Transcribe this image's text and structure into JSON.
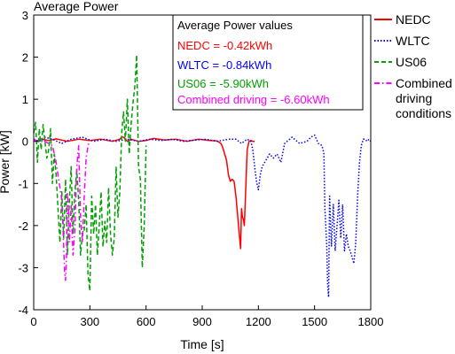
{
  "chart_data": {
    "type": "line",
    "title": "Average Power",
    "xlabel": "Time [s]",
    "ylabel": "Power [kW]",
    "xlim": [
      0,
      1800
    ],
    "ylim": [
      -4,
      3
    ],
    "xticks": [
      0,
      300,
      600,
      900,
      1200,
      1500,
      1800
    ],
    "yticks": [
      -4,
      -3,
      -2,
      -1,
      0,
      1,
      2,
      3
    ],
    "grid": false,
    "legend_position": "outside-right",
    "annotation_box": {
      "title": "Average Power values",
      "lines": [
        {
          "text": "NEDC = -0.42kWh",
          "color": "#ff0000"
        },
        {
          "text": "WLTC = -0.84kWh",
          "color": "#0000ff"
        },
        {
          "text": "US06 = -5.90kWh",
          "color": "#00a000"
        },
        {
          "text": "Combined driving = -6.60kWh",
          "color": "#ff00ff"
        }
      ]
    },
    "series": [
      {
        "name": "NEDC",
        "color": "#ff0000",
        "dash": "solid",
        "x": [
          0,
          20,
          40,
          80,
          120,
          180,
          240,
          300,
          360,
          420,
          460,
          470,
          480,
          490,
          500,
          520,
          560,
          600,
          640,
          700,
          760,
          820,
          880,
          940,
          980,
          1000,
          1010,
          1020,
          1030,
          1040,
          1050,
          1060,
          1070,
          1080,
          1090,
          1100,
          1105,
          1110,
          1115,
          1120,
          1125,
          1130,
          1140,
          1150,
          1160,
          1170,
          1180
        ],
        "y": [
          0.05,
          0.0,
          0.05,
          0.02,
          0.06,
          0.0,
          0.05,
          0.02,
          0.05,
          0.0,
          0.05,
          0.1,
          0.1,
          0.05,
          0.0,
          0.05,
          0.0,
          0.02,
          0.07,
          0.03,
          0.05,
          0.0,
          0.05,
          0.02,
          0.01,
          -0.05,
          -0.15,
          -0.3,
          -0.45,
          -0.8,
          -0.95,
          -0.9,
          -0.95,
          -1.3,
          -1.8,
          -2.3,
          -2.55,
          -1.6,
          -1.8,
          -1.85,
          -2.0,
          -1.4,
          -0.2,
          0.0,
          0.02,
          0.0,
          0.0
        ]
      },
      {
        "name": "WLTC",
        "color": "#0000ff",
        "dash": "dot",
        "x": [
          0,
          30,
          60,
          100,
          150,
          200,
          260,
          320,
          380,
          440,
          500,
          560,
          620,
          680,
          740,
          800,
          860,
          920,
          980,
          1040,
          1080,
          1110,
          1140,
          1160,
          1170,
          1180,
          1190,
          1200,
          1210,
          1220,
          1240,
          1260,
          1280,
          1300,
          1320,
          1340,
          1380,
          1420,
          1460,
          1480,
          1500,
          1520,
          1540,
          1550,
          1555,
          1560,
          1565,
          1570,
          1575,
          1580,
          1590,
          1600,
          1610,
          1620,
          1630,
          1640,
          1650,
          1660,
          1670,
          1680,
          1690,
          1700,
          1710,
          1720,
          1730,
          1740,
          1750,
          1760,
          1770,
          1780,
          1790,
          1800
        ],
        "y": [
          0.05,
          0.0,
          0.1,
          0.05,
          -0.05,
          0.05,
          0.1,
          0.0,
          0.05,
          0.0,
          0.05,
          0.0,
          0.05,
          0.02,
          0.05,
          0.0,
          0.03,
          0.05,
          0.0,
          0.05,
          0.05,
          -0.05,
          0.05,
          0.0,
          -0.2,
          -0.6,
          -0.95,
          -1.15,
          -0.8,
          -0.6,
          -0.45,
          -0.3,
          -0.4,
          -0.3,
          -0.5,
          -0.05,
          0.1,
          -0.05,
          0.0,
          0.1,
          0.15,
          -0.05,
          -0.1,
          -0.3,
          -1.6,
          -2.0,
          -2.5,
          -3.4,
          -3.7,
          -1.3,
          -2.5,
          -1.5,
          -2.6,
          -2.0,
          -1.4,
          -2.3,
          -1.5,
          -2.6,
          -2.2,
          -2.5,
          -2.6,
          -2.75,
          -2.9,
          -2.4,
          -1.3,
          -0.5,
          -0.1,
          0.05,
          0.05,
          0.0,
          0.05,
          0.0
        ]
      },
      {
        "name": "US06",
        "color": "#00a000",
        "dash": "dash",
        "x": [
          0,
          10,
          20,
          30,
          40,
          50,
          60,
          70,
          80,
          90,
          100,
          110,
          120,
          130,
          140,
          150,
          160,
          170,
          180,
          190,
          200,
          210,
          220,
          230,
          240,
          250,
          260,
          270,
          280,
          290,
          300,
          310,
          320,
          330,
          340,
          350,
          360,
          370,
          380,
          390,
          400,
          410,
          420,
          430,
          440,
          450,
          460,
          470,
          480,
          490,
          500,
          510,
          520,
          530,
          540,
          550,
          560,
          570,
          580,
          590,
          600
        ],
        "y": [
          0.2,
          0.45,
          -0.5,
          0.3,
          -0.2,
          0.4,
          0.0,
          -0.4,
          -0.2,
          0.3,
          -1.0,
          -0.3,
          -0.8,
          -1.6,
          -2.4,
          -1.2,
          -2.3,
          -0.9,
          -2.7,
          -1.5,
          -0.6,
          -2.2,
          -1.2,
          -0.7,
          -1.4,
          -2.7,
          -2.2,
          -2.1,
          -1.5,
          -3.15,
          -3.55,
          -1.3,
          -2.2,
          -1.5,
          -2.7,
          -2.0,
          -1.2,
          -2.5,
          -1.9,
          -2.4,
          -1.1,
          -2.2,
          -2.7,
          -2.3,
          -0.6,
          -1.8,
          -1.2,
          0.2,
          0.7,
          0.0,
          1.0,
          -0.3,
          0.4,
          0.9,
          1.3,
          2.05,
          -0.6,
          -0.9,
          -3.0,
          -2.0,
          -0.1
        ]
      },
      {
        "name": "Combined driving conditions",
        "color": "#ff00ff",
        "dash": "dashdot",
        "x": [
          0,
          20,
          40,
          60,
          80,
          100,
          110,
          120,
          130,
          140,
          150,
          160,
          165,
          170,
          175,
          180,
          185,
          190,
          195,
          200,
          210,
          220,
          230,
          240,
          250,
          260,
          270,
          280,
          290,
          300
        ],
        "y": [
          0.05,
          0.0,
          0.05,
          0.0,
          -0.05,
          -0.1,
          -0.3,
          -0.5,
          -0.8,
          -1.1,
          -1.4,
          -2.5,
          -3.1,
          -3.3,
          -2.8,
          -1.2,
          -1.6,
          -2.4,
          -2.0,
          -1.5,
          -2.7,
          -2.1,
          -0.6,
          -0.1,
          -1.8,
          -2.4,
          -1.3,
          -0.4,
          -0.1,
          0.0
        ]
      }
    ]
  }
}
